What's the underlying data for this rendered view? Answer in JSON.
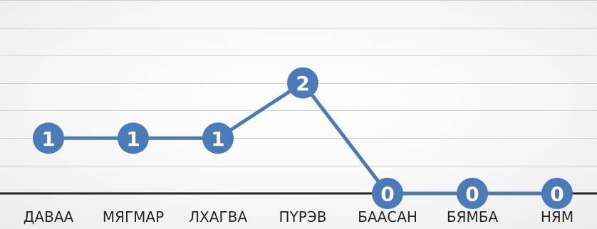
{
  "chart_data": {
    "type": "line",
    "categories": [
      "ДАВАА",
      "МЯГМАР",
      "ЛХАГВА",
      "ПҮРЭВ",
      "БААСАН",
      "БЯМБА",
      "НЯМ"
    ],
    "series": [
      {
        "values": [
          1,
          1,
          1,
          2,
          0,
          0,
          0
        ],
        "color": "#4a7ab8"
      }
    ],
    "ylim": [
      0,
      3.5
    ],
    "grid": true,
    "data_labels": true,
    "legend": "none"
  }
}
